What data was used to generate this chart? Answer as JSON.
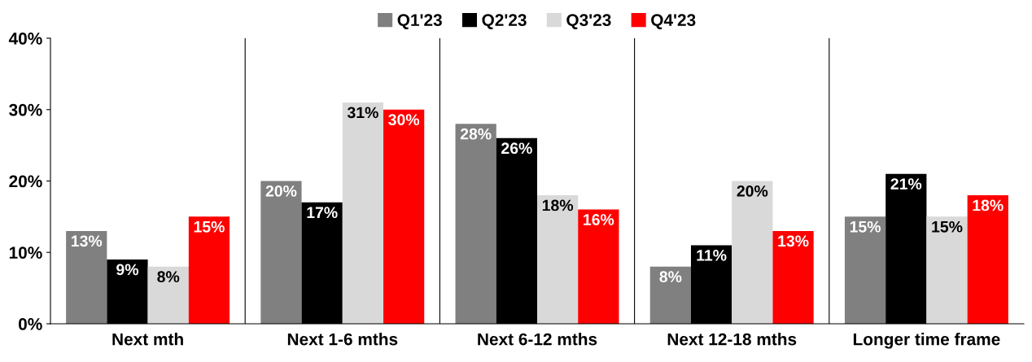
{
  "chart_data": {
    "type": "bar",
    "categories": [
      "Next mth",
      "Next 1-6 mths",
      "Next 6-12 mths",
      "Next 12-18 mths",
      "Longer time frame"
    ],
    "series": [
      {
        "name": "Q1'23",
        "color": "#808080",
        "values": [
          13,
          20,
          28,
          8,
          15
        ],
        "value_labels": [
          "13%",
          "20%",
          "28%",
          "8%",
          "15%"
        ]
      },
      {
        "name": "Q2'23",
        "color": "#000000",
        "values": [
          9,
          17,
          26,
          11,
          21
        ],
        "value_labels": [
          "9%",
          "17%",
          "26%",
          "11%",
          "21%"
        ]
      },
      {
        "name": "Q3'23",
        "color": "#d9d9d9",
        "values": [
          8,
          31,
          18,
          20,
          15
        ],
        "value_labels": [
          "8%",
          "31%",
          "18%",
          "20%",
          "15%"
        ]
      },
      {
        "name": "Q4'23",
        "color": "#ff0000",
        "values": [
          15,
          30,
          16,
          13,
          18
        ],
        "value_labels": [
          "15%",
          "30%",
          "16%",
          "13%",
          "18%"
        ]
      }
    ],
    "ylim": [
      0,
      40
    ],
    "yticks": [
      {
        "value": 0,
        "label": "0%"
      },
      {
        "value": 10,
        "label": "10%"
      },
      {
        "value": 20,
        "label": "20%"
      },
      {
        "value": 30,
        "label": "30%"
      },
      {
        "value": 40,
        "label": "40%"
      }
    ],
    "legend": "top",
    "grid": false
  }
}
